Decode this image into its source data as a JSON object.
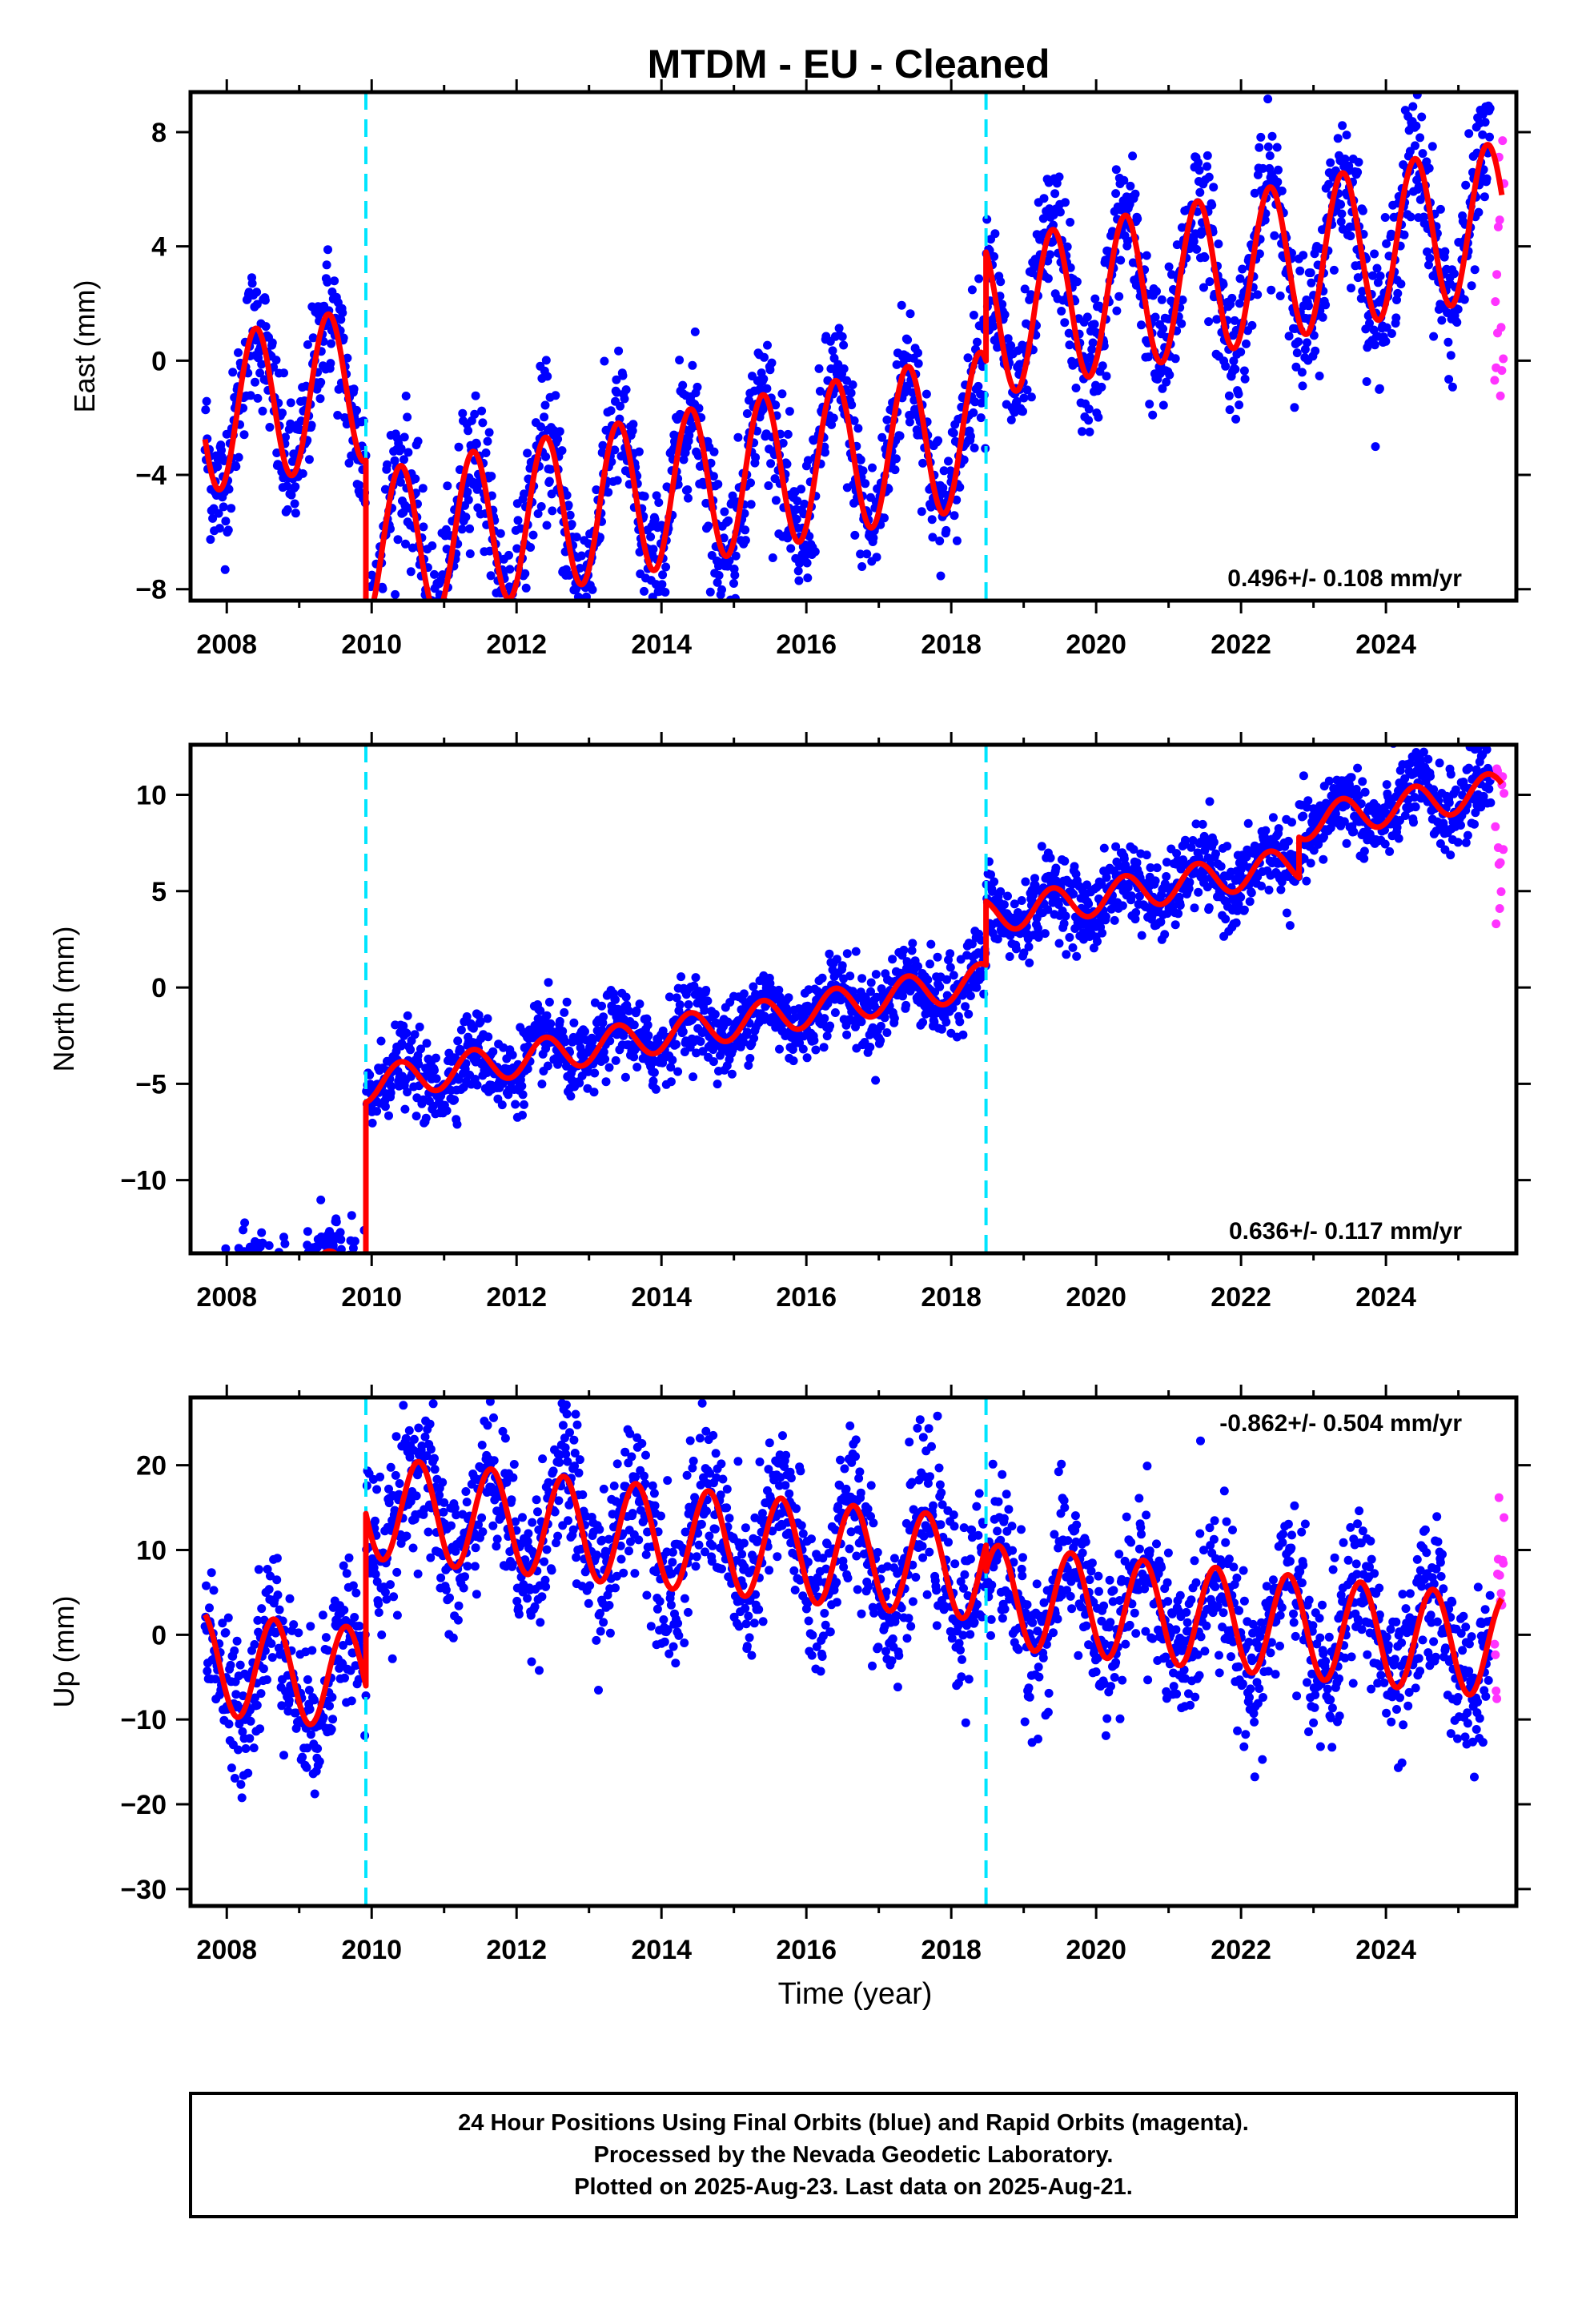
{
  "title": "MTDM  - EU - Cleaned",
  "colors": {
    "final_orbits": "#0000ff",
    "rapid_orbits": "#ff33ff",
    "model_fit": "#ff0000",
    "event_line": "#00e5ff"
  },
  "chart_data": [
    {
      "type": "scatter",
      "panel": "east",
      "ylabel": "East (mm)",
      "xlabel": "",
      "xlim": [
        2007.5,
        2025.8
      ],
      "ylim": [
        -8.4,
        9.4
      ],
      "xticks": [
        2008,
        2010,
        2012,
        2014,
        2016,
        2018,
        2020,
        2022,
        2024
      ],
      "yticks": [
        -8,
        -4,
        0,
        4,
        8
      ],
      "ytick_labels": [
        "−8",
        "−4",
        "0",
        "4",
        "8"
      ],
      "event_lines_x": [
        2009.92,
        2018.48
      ],
      "rate_text": "0.496+/- 0.108 mm/yr",
      "rate_position": "bottom-right",
      "model": {
        "segments": [
          [
            2007.7,
            2009.92,
            2.2
          ],
          [
            2009.92,
            2018.48,
            -3.6
          ],
          [
            2018.48,
            2025.6,
            0.2
          ]
        ],
        "trend": 0.496,
        "amplitude": 2.7,
        "phase_peak_year_fraction": 0.4,
        "noise_sd": 1.2
      },
      "series": [
        {
          "name": "Final Orbits (blue)",
          "x_range": [
            2007.7,
            2025.45
          ]
        },
        {
          "name": "Rapid Orbits (magenta)",
          "x_range": [
            2025.5,
            2025.63
          ],
          "y_range": [
            -1.3,
            8.3
          ]
        }
      ]
    },
    {
      "type": "scatter",
      "panel": "north",
      "ylabel": "North (mm)",
      "xlabel": "",
      "xlim": [
        2007.5,
        2025.8
      ],
      "ylim": [
        -13.8,
        12.6
      ],
      "xticks": [
        2008,
        2010,
        2012,
        2014,
        2016,
        2018,
        2020,
        2022,
        2024
      ],
      "yticks": [
        -10,
        -5,
        0,
        5,
        10
      ],
      "ytick_labels": [
        "−10",
        "−5",
        "0",
        "5",
        "10"
      ],
      "event_lines_x": [
        2009.92,
        2018.48
      ],
      "rate_text": "0.636+/- 0.117 mm/yr",
      "rate_position": "bottom-right",
      "model": {
        "segments": [
          [
            2007.7,
            2009.92,
            -10.4
          ],
          [
            2009.92,
            2018.48,
            -1.2
          ],
          [
            2018.48,
            2022.8,
            2.1
          ],
          [
            2022.8,
            2025.6,
            4.2
          ]
        ],
        "trend": 0.636,
        "amplitude": 0.9,
        "phase_peak_year_fraction": 0.4,
        "noise_sd": 1.0
      },
      "series": [
        {
          "name": "Final Orbits (blue)",
          "x_range": [
            2007.7,
            2025.45
          ]
        },
        {
          "name": "Rapid Orbits (magenta)",
          "x_range": [
            2025.5,
            2025.63
          ],
          "y_range": [
            3.0,
            12.2
          ]
        }
      ]
    },
    {
      "type": "scatter",
      "panel": "up",
      "ylabel": "Up (mm)",
      "xlabel": "Time (year)",
      "xlim": [
        2007.5,
        2025.8
      ],
      "ylim": [
        -32,
        28
      ],
      "xticks": [
        2008,
        2010,
        2012,
        2014,
        2016,
        2018,
        2020,
        2022,
        2024
      ],
      "yticks": [
        -30,
        -20,
        -10,
        0,
        10,
        20
      ],
      "ytick_labels": [
        "−30",
        "−20",
        "−10",
        "0",
        "10",
        "20"
      ],
      "event_lines_x": [
        2009.92,
        2018.48
      ],
      "rate_text": "-0.862+/- 0.504 mm/yr",
      "rate_position": "top-right",
      "model": {
        "segments": [
          [
            2007.7,
            2009.92,
            -10.5
          ],
          [
            2009.92,
            2018.48,
            9.8
          ],
          [
            2018.48,
            2025.6,
            6.8
          ]
        ],
        "trend": -0.862,
        "amplitude": 6.0,
        "phase_peak_year_fraction": 0.65,
        "noise_sd": 4.5
      },
      "series": [
        {
          "name": "Final Orbits (blue)",
          "x_range": [
            2007.7,
            2025.45
          ]
        },
        {
          "name": "Rapid Orbits (magenta)",
          "x_range": [
            2025.5,
            2025.63
          ],
          "y_range": [
            -8.0,
            18.5
          ]
        }
      ]
    }
  ],
  "footer": {
    "line1": "24 Hour Positions Using Final Orbits (blue) and Rapid Orbits (magenta).",
    "line2": "Processed by the Nevada Geodetic Laboratory.",
    "line3": "Plotted on 2025-Aug-23. Last data on 2025-Aug-21."
  }
}
